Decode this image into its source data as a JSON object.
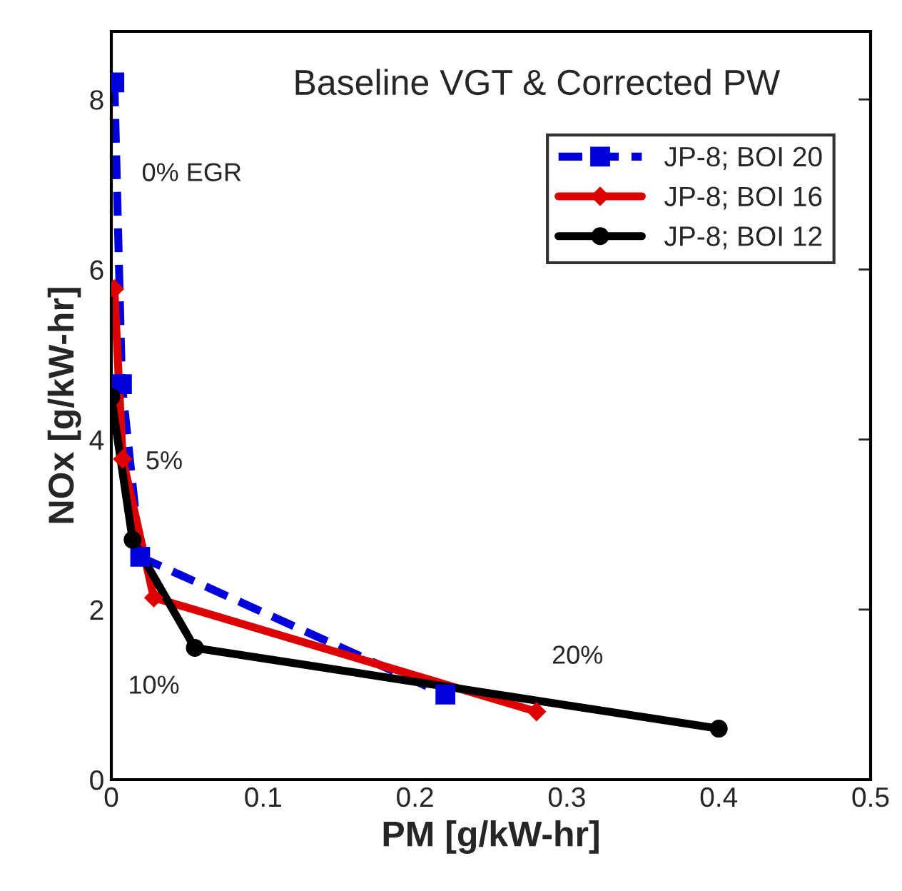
{
  "chart_data": {
    "type": "line",
    "title": "Baseline VGT & Corrected PW",
    "xlabel": "PM [g/kW-hr]",
    "ylabel": "NOx [g/kW-hr]",
    "xlim": [
      0,
      0.5
    ],
    "xticks": [
      0,
      0.1,
      0.2,
      0.3,
      0.4,
      0.5
    ],
    "ylim": [
      0,
      8.8
    ],
    "yticks": [
      0,
      2,
      4,
      6,
      8
    ],
    "grid": false,
    "legend": "top right",
    "series": [
      {
        "name": "JP-8; BOI 20",
        "color": "#0000dd",
        "marker": "square",
        "line_style": "dashed",
        "x": [
          0.002,
          0.007,
          0.019,
          0.22
        ],
        "values": [
          8.2,
          4.65,
          2.62,
          1.0
        ]
      },
      {
        "name": "JP-8; BOI 16",
        "color": "#dd0000",
        "marker": "diamond",
        "line_style": "solid",
        "x": [
          0.002,
          0.0075,
          0.028,
          0.28
        ],
        "values": [
          5.77,
          3.77,
          2.14,
          0.8
        ]
      },
      {
        "name": "JP-8; BOI 12",
        "color": "#000000",
        "marker": "circle",
        "line_style": "solid",
        "x": [
          0.0,
          0.014,
          0.055,
          0.4
        ],
        "values": [
          4.5,
          2.82,
          1.55,
          0.6
        ]
      }
    ],
    "annotations": [
      "0% EGR",
      "5%",
      "10%",
      "20%"
    ]
  }
}
